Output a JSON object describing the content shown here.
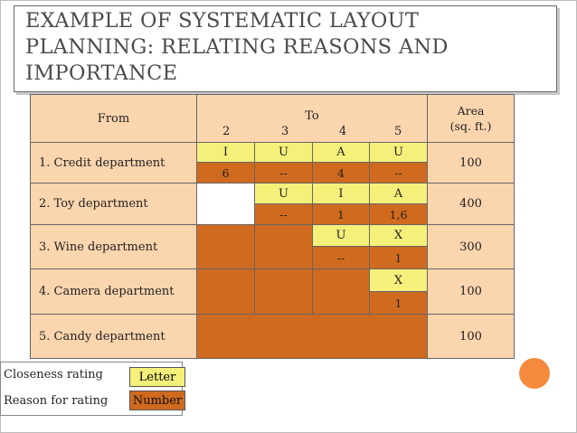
{
  "slide": {
    "title_line1": "EXAMPLE OF SYSTEMATIC LAYOUT",
    "title_line2": "PLANNING: RELATING REASONS AND",
    "title_line3": "IMPORTANCE"
  },
  "table": {
    "header": {
      "from": "From",
      "to": "To",
      "col2": "2",
      "col3": "3",
      "col4": "4",
      "col5": "5",
      "area_line1": "Area",
      "area_line2": "(sq. ft.)"
    },
    "rows": [
      {
        "label": "1. Credit department",
        "area": "100",
        "c2_letter": "I",
        "c2_number": "6",
        "c3_letter": "U",
        "c3_number": "--",
        "c4_letter": "A",
        "c4_number": "4",
        "c5_letter": "U",
        "c5_number": "--"
      },
      {
        "label": "2. Toy department",
        "area": "400",
        "c3_letter": "U",
        "c3_number": "--",
        "c4_letter": "I",
        "c4_number": "1",
        "c5_letter": "A",
        "c5_number": "1,6"
      },
      {
        "label": "3. Wine department",
        "area": "300",
        "c4_letter": "U",
        "c4_number": "--",
        "c5_letter": "X",
        "c5_number": "1"
      },
      {
        "label": "4. Camera department",
        "area": "100",
        "c5_letter": "X",
        "c5_number": "1"
      },
      {
        "label": "5. Candy department",
        "area": "100"
      }
    ]
  },
  "legend": {
    "closeness_label": "Closeness rating",
    "closeness_key": "Letter",
    "reason_label": "Reason for rating",
    "reason_key": "Number"
  },
  "colors": {
    "label_fill": "#fbd5ae",
    "letter_fill": "#f4f07a",
    "number_fill": "#cf6a1f",
    "accent_dot": "#f58a3d"
  }
}
